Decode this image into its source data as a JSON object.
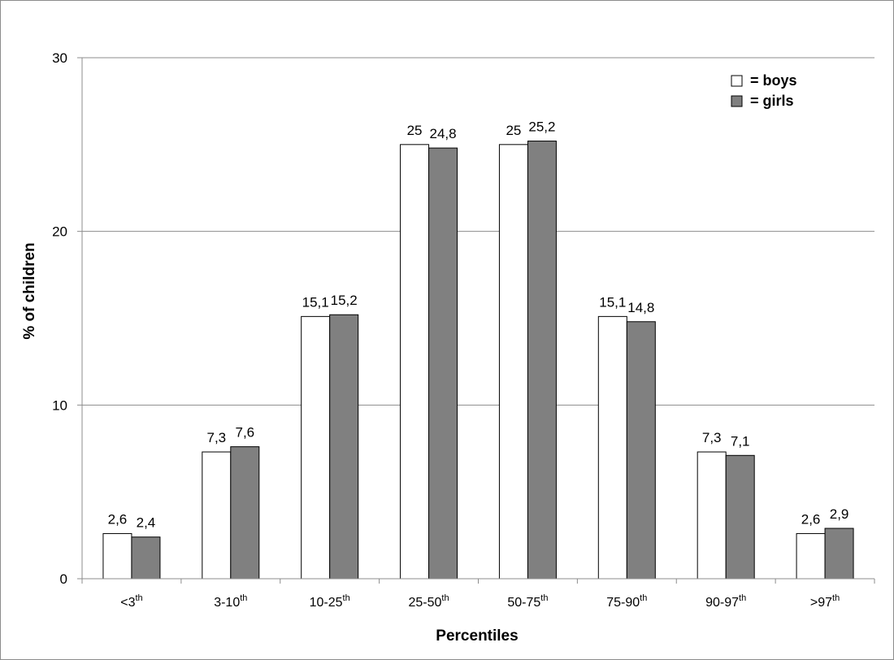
{
  "chart_data": {
    "type": "bar",
    "categories": [
      {
        "base": "<3",
        "sup": "th"
      },
      {
        "base": "3-10",
        "sup": "th"
      },
      {
        "base": "10-25",
        "sup": "th"
      },
      {
        "base": "25-50",
        "sup": "th"
      },
      {
        "base": "50-75",
        "sup": "th"
      },
      {
        "base": "75-90",
        "sup": "th"
      },
      {
        "base": "90-97",
        "sup": "th"
      },
      {
        "base": ">97",
        "sup": "th"
      }
    ],
    "series": [
      {
        "name": "= boys",
        "color": "#ffffff",
        "values": [
          2.6,
          7.3,
          15.1,
          25,
          25,
          15.1,
          7.3,
          2.6
        ],
        "labels": [
          "2,6",
          "7,3",
          "15,1",
          "25",
          "25",
          "15,1",
          "7,3",
          "2,6"
        ]
      },
      {
        "name": "= girls",
        "color": "#808080",
        "values": [
          2.4,
          7.6,
          15.2,
          24.8,
          25.2,
          14.8,
          7.1,
          2.9
        ],
        "labels": [
          "2,4",
          "7,6",
          "15,2",
          "24,8",
          "25,2",
          "14,8",
          "7,1",
          "2,9"
        ]
      }
    ],
    "xlabel": "Percentiles",
    "ylabel": "% of children",
    "ylim": [
      0,
      30
    ],
    "yticks": [
      0,
      10,
      20,
      30
    ],
    "grid": true,
    "legend_position": "top-right"
  }
}
